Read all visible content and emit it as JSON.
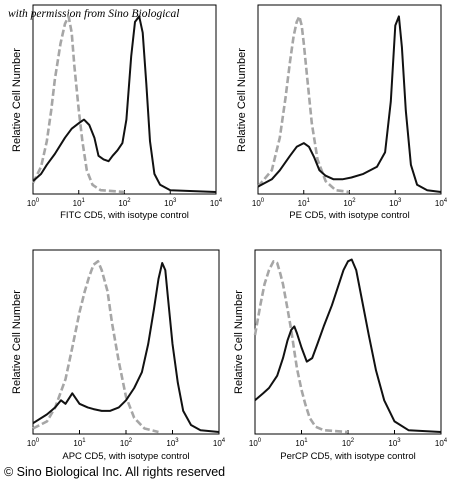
{
  "watermark": "with permission from Sino Biological",
  "copyright": "© Sino Biological Inc. All rights reserved",
  "colors": {
    "sample": "#111111",
    "isotype": "#a6a6a6"
  },
  "chart_data": [
    {
      "type": "line",
      "xlabel": "FITC CD5, with isotype control",
      "ylabel": "Relative Cell Number",
      "x_scale": "log",
      "xlim": [
        1,
        10000
      ],
      "ylim": [
        0,
        100
      ],
      "x_ticks": [
        "10^0",
        "10^1",
        "10^2",
        "10^3",
        "10^4"
      ],
      "series": [
        {
          "role": "sample",
          "style": "solid",
          "points": [
            [
              1,
              6
            ],
            [
              1.5,
              10
            ],
            [
              2,
              15
            ],
            [
              3,
              21
            ],
            [
              5,
              30
            ],
            [
              7,
              35
            ],
            [
              10,
              38
            ],
            [
              13,
              40
            ],
            [
              17,
              37
            ],
            [
              22,
              30
            ],
            [
              27,
              20
            ],
            [
              35,
              18
            ],
            [
              45,
              17
            ],
            [
              55,
              20
            ],
            [
              70,
              23
            ],
            [
              90,
              27
            ],
            [
              110,
              40
            ],
            [
              140,
              75
            ],
            [
              170,
              94
            ],
            [
              210,
              97
            ],
            [
              250,
              88
            ],
            [
              300,
              60
            ],
            [
              360,
              28
            ],
            [
              450,
              10
            ],
            [
              600,
              4
            ],
            [
              1000,
              1
            ],
            [
              10000,
              0
            ]
          ]
        },
        {
          "role": "isotype",
          "style": "dashed",
          "points": [
            [
              1,
              5
            ],
            [
              1.5,
              14
            ],
            [
              2,
              28
            ],
            [
              2.5,
              45
            ],
            [
              3,
              62
            ],
            [
              4,
              82
            ],
            [
              5,
              93
            ],
            [
              6,
              97
            ],
            [
              7,
              88
            ],
            [
              8,
              70
            ],
            [
              10,
              45
            ],
            [
              12,
              28
            ],
            [
              15,
              12
            ],
            [
              20,
              4
            ],
            [
              30,
              1
            ],
            [
              100,
              0
            ]
          ]
        }
      ]
    },
    {
      "type": "line",
      "xlabel": "PE CD5, with isotype control",
      "ylabel": "Relative Cell Number",
      "x_scale": "log",
      "xlim": [
        1,
        10000
      ],
      "ylim": [
        0,
        100
      ],
      "x_ticks": [
        "10^0",
        "10^1",
        "10^2",
        "10^3",
        "10^4"
      ],
      "series": [
        {
          "role": "sample",
          "style": "solid",
          "points": [
            [
              1,
              3
            ],
            [
              2,
              7
            ],
            [
              3,
              12
            ],
            [
              5,
              20
            ],
            [
              7,
              25
            ],
            [
              10,
              27
            ],
            [
              13,
              25
            ],
            [
              17,
              19
            ],
            [
              22,
              12
            ],
            [
              30,
              9
            ],
            [
              45,
              7
            ],
            [
              70,
              7
            ],
            [
              110,
              8
            ],
            [
              200,
              10
            ],
            [
              400,
              14
            ],
            [
              600,
              22
            ],
            [
              800,
              50
            ],
            [
              1000,
              92
            ],
            [
              1200,
              97
            ],
            [
              1400,
              80
            ],
            [
              1700,
              45
            ],
            [
              2200,
              15
            ],
            [
              3000,
              4
            ],
            [
              5000,
              1
            ],
            [
              10000,
              0
            ]
          ]
        },
        {
          "role": "isotype",
          "style": "dashed",
          "points": [
            [
              1,
              3
            ],
            [
              2,
              12
            ],
            [
              3,
              30
            ],
            [
              4,
              52
            ],
            [
              5,
              72
            ],
            [
              6,
              86
            ],
            [
              7,
              94
            ],
            [
              8,
              97
            ],
            [
              9,
              92
            ],
            [
              10,
              82
            ],
            [
              12,
              62
            ],
            [
              15,
              38
            ],
            [
              20,
              18
            ],
            [
              30,
              6
            ],
            [
              50,
              1
            ],
            [
              100,
              0
            ]
          ]
        }
      ]
    },
    {
      "type": "line",
      "xlabel": "APC CD5, with isotype control",
      "ylabel": "Relative Cell Number",
      "x_scale": "log",
      "xlim": [
        1,
        10000
      ],
      "ylim": [
        0,
        100
      ],
      "x_ticks": [
        "10^0",
        "10^1",
        "10^2",
        "10^3",
        "10^4"
      ],
      "series": [
        {
          "role": "sample",
          "style": "solid",
          "points": [
            [
              1,
              5
            ],
            [
              2,
              10
            ],
            [
              3,
              14
            ],
            [
              4,
              18
            ],
            [
              5,
              16
            ],
            [
              7,
              22
            ],
            [
              10,
              16
            ],
            [
              15,
              14
            ],
            [
              20,
              13
            ],
            [
              30,
              12
            ],
            [
              45,
              12
            ],
            [
              70,
              14
            ],
            [
              100,
              18
            ],
            [
              150,
              25
            ],
            [
              220,
              34
            ],
            [
              300,
              50
            ],
            [
              400,
              70
            ],
            [
              500,
              87
            ],
            [
              600,
              96
            ],
            [
              700,
              92
            ],
            [
              800,
              76
            ],
            [
              1000,
              50
            ],
            [
              1300,
              28
            ],
            [
              1700,
              12
            ],
            [
              2500,
              4
            ],
            [
              4000,
              1
            ],
            [
              10000,
              0
            ]
          ]
        },
        {
          "role": "isotype",
          "style": "dashed",
          "points": [
            [
              1,
              2
            ],
            [
              2,
              6
            ],
            [
              3,
              14
            ],
            [
              5,
              30
            ],
            [
              7,
              48
            ],
            [
              10,
              68
            ],
            [
              13,
              80
            ],
            [
              16,
              88
            ],
            [
              20,
              95
            ],
            [
              25,
              97
            ],
            [
              30,
              92
            ],
            [
              40,
              80
            ],
            [
              50,
              62
            ],
            [
              70,
              40
            ],
            [
              100,
              20
            ],
            [
              150,
              8
            ],
            [
              250,
              2
            ],
            [
              500,
              0
            ]
          ]
        }
      ]
    },
    {
      "type": "line",
      "xlabel": "PerCP CD5, with isotype control",
      "ylabel": "Relative Cell Number",
      "x_scale": "log",
      "xlim": [
        1,
        10000
      ],
      "ylim": [
        0,
        100
      ],
      "x_ticks": [
        "10^0",
        "10^1",
        "10^2",
        "10^3",
        "10^4"
      ],
      "series": [
        {
          "role": "sample",
          "style": "solid",
          "points": [
            [
              1,
              18
            ],
            [
              1.5,
              22
            ],
            [
              2,
              25
            ],
            [
              3,
              32
            ],
            [
              4,
              42
            ],
            [
              5,
              52
            ],
            [
              6,
              58
            ],
            [
              7,
              60
            ],
            [
              8,
              56
            ],
            [
              10,
              48
            ],
            [
              13,
              40
            ],
            [
              17,
              42
            ],
            [
              22,
              50
            ],
            [
              30,
              60
            ],
            [
              45,
              72
            ],
            [
              60,
              82
            ],
            [
              80,
              92
            ],
            [
              100,
              97
            ],
            [
              120,
              98
            ],
            [
              150,
              92
            ],
            [
              200,
              75
            ],
            [
              280,
              55
            ],
            [
              400,
              35
            ],
            [
              600,
              18
            ],
            [
              1000,
              6
            ],
            [
              2000,
              1
            ],
            [
              10000,
              0
            ]
          ]
        },
        {
          "role": "isotype",
          "style": "dashed",
          "points": [
            [
              1,
              55
            ],
            [
              1.3,
              72
            ],
            [
              1.6,
              84
            ],
            [
              2,
              92
            ],
            [
              2.5,
              97
            ],
            [
              3,
              96
            ],
            [
              3.5,
              90
            ],
            [
              4,
              84
            ],
            [
              5,
              70
            ],
            [
              6,
              58
            ],
            [
              7,
              46
            ],
            [
              8,
              36
            ],
            [
              10,
              24
            ],
            [
              12,
              16
            ],
            [
              15,
              8
            ],
            [
              20,
              3
            ],
            [
              30,
              1
            ],
            [
              100,
              0
            ]
          ]
        }
      ]
    }
  ]
}
